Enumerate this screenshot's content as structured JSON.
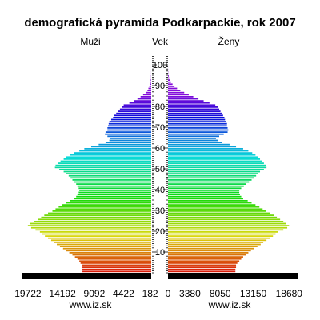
{
  "chart_data": {
    "type": "bar",
    "orientation": "population-pyramid",
    "title": "demografická pyramída Podkarpackie, rok 2007",
    "left_label": "Muži",
    "center_label": "Vek",
    "right_label": "Ženy",
    "male_ticks": [
      "19722",
      "14192",
      "9092",
      "4422",
      "182"
    ],
    "female_ticks": [
      "0",
      "3380",
      "8050",
      "13150",
      "18680"
    ],
    "male_tick_values": [
      19722,
      14192,
      9092,
      4422,
      182
    ],
    "female_tick_values": [
      0,
      3380,
      8050,
      13150,
      18680
    ],
    "age_ticks": [
      10,
      20,
      30,
      40,
      50,
      60,
      70,
      80,
      90,
      100
    ],
    "xlim_male": [
      0,
      20600
    ],
    "xlim_female": [
      0,
      20000
    ],
    "age_range": [
      0,
      108
    ],
    "sources": [
      "www.iz.sk",
      "www.iz.sk"
    ],
    "series": [
      {
        "name": "Muži",
        "values": [
          11000,
          11000,
          11000,
          11000,
          11300,
          11500,
          11800,
          12200,
          12600,
          13100,
          13600,
          14100,
          14600,
          15100,
          15600,
          16000,
          16500,
          17000,
          17400,
          17800,
          18500,
          19200,
          19722,
          19400,
          18700,
          18100,
          17600,
          17100,
          16500,
          15800,
          15300,
          14800,
          14200,
          13600,
          13000,
          12300,
          12000,
          11800,
          11600,
          11500,
          11600,
          11800,
          12000,
          12300,
          12600,
          12900,
          13200,
          13600,
          14000,
          14700,
          15400,
          15300,
          14900,
          14500,
          14000,
          13600,
          13000,
          12300,
          11500,
          10700,
          9600,
          8400,
          7300,
          6700,
          6600,
          7000,
          7400,
          7300,
          7000,
          7000,
          6900,
          6800,
          6700,
          6400,
          6100,
          5900,
          5600,
          5300,
          5000,
          4700,
          4400,
          3500,
          2800,
          2200,
          1700,
          1300,
          900,
          600,
          450,
          300,
          200,
          120,
          80,
          50,
          30,
          20,
          10,
          5,
          3,
          2,
          1
        ]
      },
      {
        "name": "Ženy",
        "values": [
          10400,
          10400,
          10500,
          10500,
          10700,
          11000,
          11300,
          11600,
          12000,
          12400,
          12800,
          13300,
          13800,
          14300,
          14700,
          15200,
          15700,
          16200,
          16600,
          17000,
          17800,
          18400,
          18680,
          18200,
          17800,
          17300,
          16800,
          16300,
          15800,
          15100,
          14600,
          14100,
          13500,
          12900,
          12300,
          11600,
          11300,
          11100,
          11000,
          11000,
          11300,
          11700,
          12100,
          12500,
          12900,
          13300,
          13600,
          13900,
          14200,
          14800,
          15200,
          15100,
          14800,
          14500,
          14200,
          13900,
          13500,
          13000,
          12400,
          11600,
          10500,
          9500,
          8300,
          7700,
          7400,
          7900,
          8600,
          9200,
          9300,
          9200,
          9100,
          9100,
          9000,
          8800,
          8700,
          8500,
          8300,
          8100,
          7900,
          7700,
          7300,
          6400,
          5500,
          4700,
          3900,
          3200,
          2500,
          1900,
          1400,
          1000,
          700,
          450,
          300,
          180,
          110,
          60,
          35,
          20,
          10,
          5,
          2
        ]
      }
    ]
  }
}
